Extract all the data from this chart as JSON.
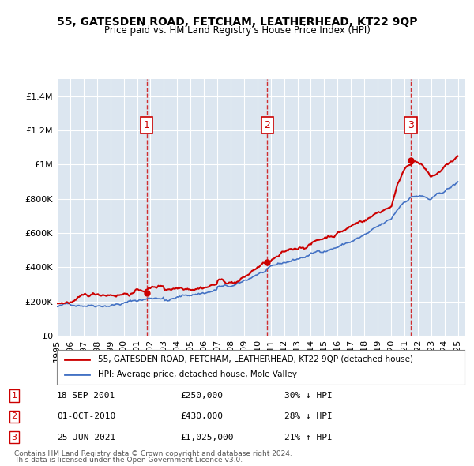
{
  "title": "55, GATESDEN ROAD, FETCHAM, LEATHERHEAD, KT22 9QP",
  "subtitle": "Price paid vs. HM Land Registry's House Price Index (HPI)",
  "xlabel": "",
  "ylabel": "",
  "ylim": [
    0,
    1500000
  ],
  "xlim_start": 1995.0,
  "xlim_end": 2025.5,
  "yticks": [
    0,
    200000,
    400000,
    600000,
    800000,
    1000000,
    1200000,
    1400000
  ],
  "ytick_labels": [
    "£0",
    "£200K",
    "£400K",
    "£600K",
    "£800K",
    "£1M",
    "£1.2M",
    "£1.4M"
  ],
  "background_color": "#dce6f0",
  "plot_bg_color": "#dce6f0",
  "red_line_color": "#cc0000",
  "blue_line_color": "#4472c4",
  "transaction_color": "#cc0000",
  "transactions": [
    {
      "num": 1,
      "date": "18-SEP-2001",
      "price": 250000,
      "pct": "30%",
      "dir": "↓",
      "x": 2001.72
    },
    {
      "num": 2,
      "date": "01-OCT-2010",
      "price": 430000,
      "pct": "28%",
      "dir": "↓",
      "x": 2010.75
    },
    {
      "num": 3,
      "date": "25-JUN-2021",
      "price": 1025000,
      "pct": "21%",
      "dir": "↑",
      "x": 2021.48
    }
  ],
  "legend_entries": [
    "55, GATESDEN ROAD, FETCHAM, LEATHERHEAD, KT22 9QP (detached house)",
    "HPI: Average price, detached house, Mole Valley"
  ],
  "footnote1": "Contains HM Land Registry data © Crown copyright and database right 2024.",
  "footnote2": "This data is licensed under the Open Government Licence v3.0.",
  "grid_color": "#ffffff",
  "table_rows": [
    [
      "1",
      "18-SEP-2001",
      "£250,000",
      "30% ↓ HPI"
    ],
    [
      "2",
      "01-OCT-2010",
      "£430,000",
      "28% ↓ HPI"
    ],
    [
      "3",
      "25-JUN-2021",
      "£1,025,000",
      "21% ↑ HPI"
    ]
  ]
}
